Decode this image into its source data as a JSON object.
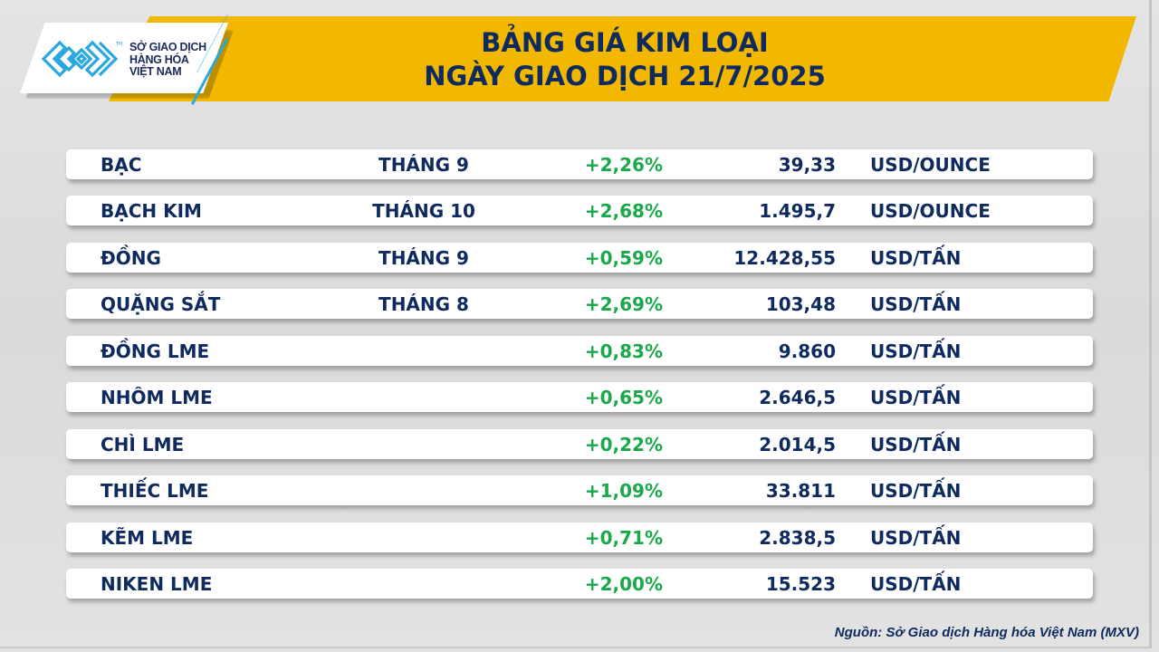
{
  "logo": {
    "lines": [
      "SỞ GIAO DỊCH",
      "HÀNG HÓA",
      "VIỆT NAM"
    ],
    "tm": "TM",
    "brand_color": "#29a8e0"
  },
  "header": {
    "title_line1": "BẢNG GIÁ KIM LOẠI",
    "title_line2": "NGÀY GIAO DỊCH 21/7/2025",
    "band_color": "#f2b800",
    "text_color": "#0f2a5e"
  },
  "colors": {
    "positive": "#1aa84a"
  },
  "rows": [
    {
      "name": "BẠC",
      "month": "THÁNG 9",
      "change": "+2,26%",
      "price": "39,33",
      "unit": "USD/OUNCE"
    },
    {
      "name": "BẠCH KIM",
      "month": "THÁNG 10",
      "change": "+2,68%",
      "price": "1.495,7",
      "unit": "USD/OUNCE"
    },
    {
      "name": "ĐỒNG",
      "month": "THÁNG 9",
      "change": "+0,59%",
      "price": "12.428,55",
      "unit": "USD/TẤN"
    },
    {
      "name": "QUẶNG SẮT",
      "month": "THÁNG 8",
      "change": "+2,69%",
      "price": "103,48",
      "unit": "USD/TẤN"
    },
    {
      "name": "ĐỒNG LME",
      "month": "",
      "change": "+0,83%",
      "price": "9.860",
      "unit": "USD/TẤN"
    },
    {
      "name": "NHÔM LME",
      "month": "",
      "change": "+0,65%",
      "price": "2.646,5",
      "unit": "USD/TẤN"
    },
    {
      "name": "CHÌ LME",
      "month": "",
      "change": "+0,22%",
      "price": "2.014,5",
      "unit": "USD/TẤN"
    },
    {
      "name": "THIẾC LME",
      "month": "",
      "change": "+1,09%",
      "price": "33.811",
      "unit": "USD/TẤN"
    },
    {
      "name": "KẼM LME",
      "month": "",
      "change": "+0,71%",
      "price": "2.838,5",
      "unit": "USD/TẤN"
    },
    {
      "name": "NIKEN LME",
      "month": "",
      "change": "+2,00%",
      "price": "15.523",
      "unit": "USD/TẤN"
    }
  ],
  "footer": {
    "source": "Nguồn: Sở Giao dịch Hàng hóa Việt Nam (MXV)"
  }
}
